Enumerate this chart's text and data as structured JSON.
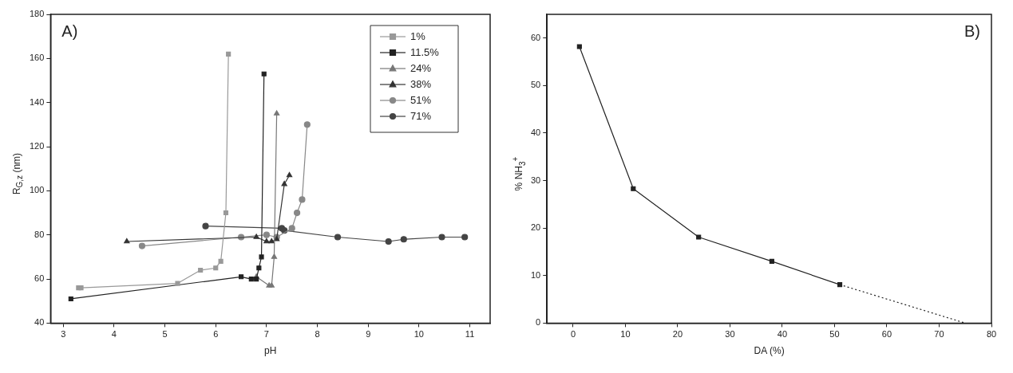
{
  "chart_data": [
    {
      "type": "line",
      "annotations": [
        "A)"
      ],
      "xlabel": "pH",
      "ylabel": "R$_{G,z}$ (nm)",
      "xlim": [
        2.75,
        11.4
      ],
      "ylim": [
        40,
        180
      ],
      "xticks": [
        3,
        4,
        5,
        6,
        7,
        8,
        9,
        10,
        11
      ],
      "yticks": [
        40,
        60,
        80,
        100,
        120,
        140,
        160,
        180
      ],
      "grid": false,
      "legend": "top right",
      "line_style": "solid",
      "series": [
        {
          "name": "1%",
          "color": "#999999",
          "marker": "square",
          "x": [
            3.3,
            3.35,
            5.25,
            5.7,
            6.0,
            6.1,
            6.2,
            6.25
          ],
          "values": [
            56,
            56,
            58,
            64,
            65,
            68,
            90,
            162
          ]
        },
        {
          "name": "11.5%",
          "color": "#222222",
          "marker": "square",
          "x": [
            3.15,
            6.5,
            6.7,
            6.8,
            6.85,
            6.9,
            6.95
          ],
          "values": [
            51,
            61,
            60,
            60,
            65,
            70,
            153
          ]
        },
        {
          "name": "24%",
          "color": "#777777",
          "marker": "triangle",
          "x": [
            6.8,
            7.05,
            7.1,
            7.15,
            7.2
          ],
          "values": [
            61,
            57,
            57,
            70,
            135
          ]
        },
        {
          "name": "38%",
          "color": "#333333",
          "marker": "triangle",
          "x": [
            4.25,
            6.8,
            7.0,
            7.1,
            7.2,
            7.35,
            7.45
          ],
          "values": [
            77,
            79,
            77,
            77,
            78,
            103,
            107
          ]
        },
        {
          "name": "51%",
          "color": "#888888",
          "marker": "circle",
          "x": [
            4.55,
            6.5,
            7.0,
            7.2,
            7.5,
            7.6,
            7.7,
            7.8
          ],
          "values": [
            75,
            79,
            80,
            79,
            83,
            90,
            96,
            130
          ]
        },
        {
          "name": "71%",
          "color": "#444444",
          "marker": "circle",
          "x": [
            5.8,
            7.3,
            7.35,
            8.4,
            9.4,
            9.7,
            10.45,
            10.9
          ],
          "values": [
            84,
            83,
            82,
            79,
            77,
            78,
            79,
            79
          ]
        }
      ]
    },
    {
      "type": "line",
      "annotations": [
        "B)"
      ],
      "xlabel": "DA (%)",
      "ylabel": "% NH$_{3}$$^{+}$",
      "xlim": [
        -5,
        80
      ],
      "ylim": [
        0,
        65
      ],
      "xticks": [
        0,
        10,
        20,
        30,
        40,
        50,
        60,
        70,
        80
      ],
      "yticks": [
        0,
        10,
        20,
        30,
        40,
        50,
        60
      ],
      "grid": false,
      "legend": false,
      "line_style": "solid",
      "series": [
        {
          "color": "#222222",
          "marker": "square",
          "x": [
            1.2,
            11.5,
            24,
            38,
            51
          ],
          "values": [
            58.2,
            28.3,
            18.1,
            13,
            8.1
          ]
        },
        {
          "color": "#222222",
          "marker": "none",
          "line_style": "dotted",
          "x": [
            51,
            75
          ],
          "values": [
            8.1,
            0
          ]
        }
      ]
    }
  ]
}
